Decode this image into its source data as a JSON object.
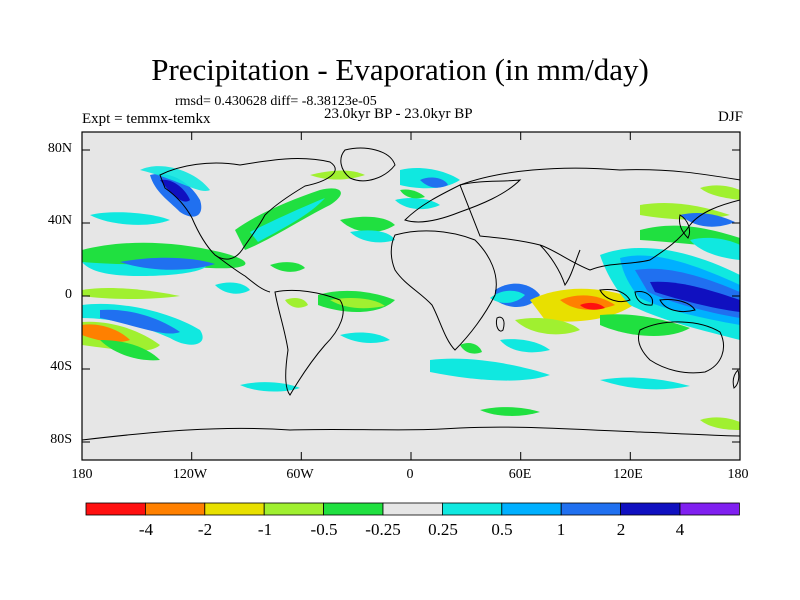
{
  "title": "Precipitation - Evaporation (in mm/day)",
  "stats": "rmsd= 0.430628 diff= -8.38123e-05",
  "period": "23.0kyr BP - 23.0kyr BP",
  "experiment": "Expt = temmx-temkx",
  "season": "DJF",
  "lat_labels": [
    "80N",
    "40N",
    "0",
    "40S",
    "80S"
  ],
  "lon_labels": [
    "180",
    "120W",
    "60W",
    "0",
    "60E",
    "120E",
    "180"
  ],
  "colorbar": {
    "labels": [
      "-4",
      "-2",
      "-1",
      "-0.5",
      "-0.25",
      "0.25",
      "0.5",
      "1",
      "2",
      "4"
    ],
    "colors": [
      "#ff1010",
      "#ff8000",
      "#e8e000",
      "#a0f030",
      "#20e040",
      "#e6e6e6",
      "#10e8e0",
      "#00b0ff",
      "#2070f0",
      "#1010c0",
      "#8020f0"
    ]
  },
  "colors": {
    "ocean_land_background": "#e6e6e6",
    "coastline": "#000000"
  }
}
